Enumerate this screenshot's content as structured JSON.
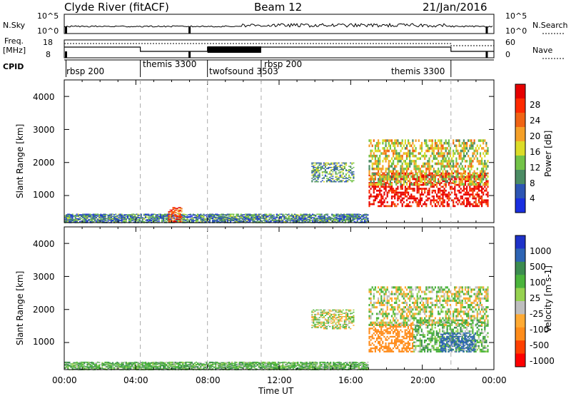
{
  "header": {
    "station": "Clyde River (fitACF)",
    "beam": "Beam 12",
    "date": "21/Jan/2016"
  },
  "noise_panel": {
    "left_label": "N.Sky",
    "left_ticks": [
      "10^5",
      "10^0"
    ],
    "right_label": "N.Search",
    "right_ticks": [
      "10^5",
      "10^0"
    ]
  },
  "freq_panel": {
    "left_label_1": "Freq.",
    "left_label_2": "[MHz]",
    "left_ticks": [
      "18",
      "8"
    ],
    "right_label": "Nave",
    "right_ticks": [
      "60",
      "0"
    ]
  },
  "cpid": {
    "label": "CPID",
    "programs": [
      "rbsp 200",
      "themis 3300",
      "twofsound 3503",
      "rbsp 200",
      "themis 3300"
    ]
  },
  "axes": {
    "x_ticks": [
      "00:00",
      "04:00",
      "08:00",
      "12:00",
      "16:00",
      "20:00",
      "00:00"
    ],
    "x_label": "Time UT",
    "y_ticks": [
      "4000",
      "3000",
      "2000",
      "1000"
    ],
    "y_label": "Slant Range [km]"
  },
  "colors": {
    "power_scale": [
      "#1a2fe0",
      "#2d55b4",
      "#4b8c64",
      "#73c348",
      "#dcdc28",
      "#f5a028",
      "#f06414",
      "#ff2a00",
      "#e60000"
    ],
    "velocity_scale": [
      "#ff0000",
      "#ff4000",
      "#ff8c1a",
      "#ffaa33",
      "#bebebe",
      "#96d250",
      "#4bb43c",
      "#3c8c50",
      "#2d64b4",
      "#1e32c8"
    ]
  },
  "colorbars": {
    "power": {
      "label": "Power [dB]",
      "ticks": [
        "28",
        "24",
        "20",
        "16",
        "12",
        "8",
        "4"
      ]
    },
    "velocity": {
      "label": "Velocity [m s-1]",
      "ticks": [
        "1000",
        "500",
        "100",
        "25",
        "-25",
        "-100",
        "-500",
        "-1000"
      ]
    }
  },
  "chart_data": [
    {
      "type": "heatmap",
      "title": "Power",
      "xlabel": "Time UT",
      "ylabel": "Slant Range [km]",
      "xlim_hours": [
        0,
        24
      ],
      "ylim_km": [
        180,
        4500
      ],
      "colorbar": {
        "label": "Power [dB]",
        "range": [
          0,
          32
        ]
      },
      "program_change_hours": [
        4.25,
        8.0,
        11.0,
        21.6
      ],
      "regions": [
        {
          "t": [
            17.0,
            23.7
          ],
          "range_km": [
            650,
            1700
          ],
          "value": 30
        },
        {
          "t": [
            17.0,
            23.7
          ],
          "range_km": [
            1300,
            2700
          ],
          "value": 16
        },
        {
          "t": [
            0.0,
            17.0
          ],
          "range_km": [
            180,
            450
          ],
          "value": 8
        },
        {
          "t": [
            5.8,
            6.6
          ],
          "range_km": [
            200,
            650
          ],
          "value": 24
        },
        {
          "t": [
            13.8,
            16.2
          ],
          "range_km": [
            1400,
            2000
          ],
          "value": 10
        }
      ]
    },
    {
      "type": "heatmap",
      "title": "Velocity",
      "xlabel": "Time UT",
      "ylabel": "Slant Range [km]",
      "xlim_hours": [
        0,
        24
      ],
      "ylim_km": [
        180,
        4500
      ],
      "colorbar": {
        "label": "Velocity [m s-1]",
        "range": [
          -1000,
          1000
        ]
      },
      "regions": [
        {
          "t": [
            17.0,
            19.5
          ],
          "range_km": [
            700,
            1600
          ],
          "value": -250
        },
        {
          "t": [
            19.5,
            23.7
          ],
          "range_km": [
            700,
            1700
          ],
          "value": 60
        },
        {
          "t": [
            21.0,
            23.0
          ],
          "range_km": [
            700,
            1300
          ],
          "value": 800
        },
        {
          "t": [
            17.0,
            23.7
          ],
          "range_km": [
            1500,
            2700
          ],
          "value": 0
        },
        {
          "t": [
            0.0,
            17.0
          ],
          "range_km": [
            180,
            420
          ],
          "value": 60
        },
        {
          "t": [
            13.8,
            16.2
          ],
          "range_km": [
            1400,
            2000
          ],
          "value": 0
        }
      ]
    }
  ]
}
